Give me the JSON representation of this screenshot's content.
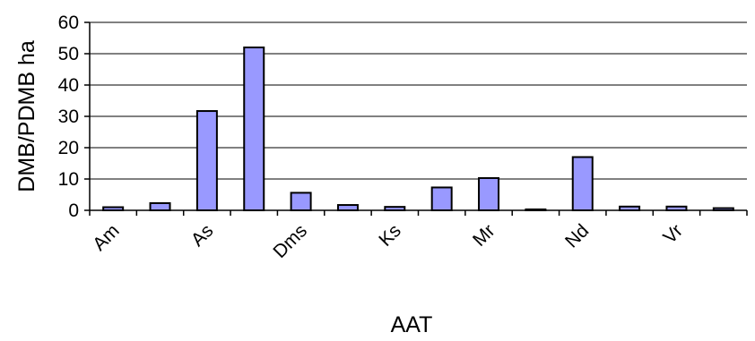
{
  "chart_data": {
    "type": "bar",
    "title": "",
    "xlabel": "AAT",
    "ylabel": "DMB/PDMB ha",
    "ylim": [
      0,
      60
    ],
    "yticks": [
      0,
      10,
      20,
      30,
      40,
      50,
      60
    ],
    "categories": [
      "Am",
      "",
      "As",
      "",
      "Dms",
      "",
      "Ks",
      "",
      "Mr",
      "",
      "Nd",
      "",
      "Vr",
      ""
    ],
    "visible_tick_labels": [
      "Am",
      "As",
      "Dms",
      "Ks",
      "Mr",
      "Nd",
      "Vr"
    ],
    "values": [
      1,
      2.3,
      31.7,
      52,
      5.6,
      1.7,
      1.1,
      7.3,
      10.3,
      0.3,
      17,
      1.2,
      1.2,
      0.7
    ],
    "grid": true,
    "legend": "none",
    "colors": {
      "bar_fill": "#9999ff",
      "bar_stroke": "#000000",
      "grid": "#000000"
    }
  }
}
